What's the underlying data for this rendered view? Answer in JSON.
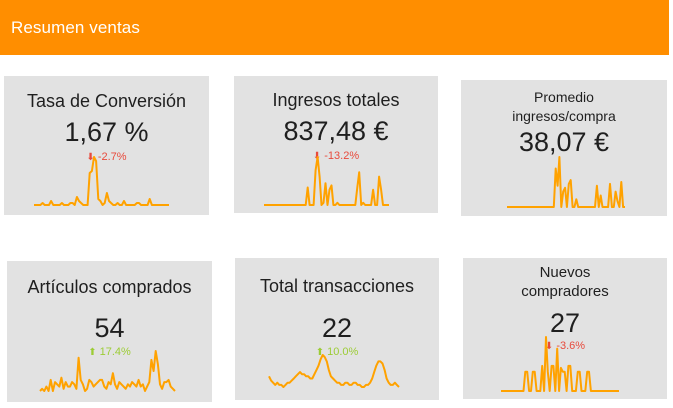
{
  "header": {
    "title": "Resumen ventas"
  },
  "colors": {
    "header_bg": "#ff8e00",
    "card_bg": "#e2e2e2",
    "sparkline": "#ffa200",
    "delta_down": "#e84a3c",
    "delta_up": "#9ccc35"
  },
  "cards": [
    {
      "title": "Tasa de Conversión",
      "value": "1,67 %",
      "delta": "-2.7%",
      "direction": "down",
      "sparkline": [
        0,
        0,
        0,
        0,
        1,
        0,
        0,
        0,
        2,
        0,
        0,
        0,
        0,
        1,
        0,
        0,
        0,
        1,
        1,
        0,
        4,
        2,
        1,
        0,
        0,
        0,
        16,
        17,
        24,
        22,
        3,
        2,
        0,
        1,
        6,
        2,
        1,
        0,
        0,
        1,
        0,
        0,
        2,
        0,
        0,
        0,
        0,
        0,
        1,
        1,
        0,
        0,
        0,
        0,
        3,
        0,
        0,
        0,
        0,
        0,
        0,
        0,
        0,
        0
      ]
    },
    {
      "title": "Ingresos totales",
      "value": "837,48 €",
      "delta": "-13.2%",
      "direction": "down",
      "sparkline": [
        0,
        0,
        0,
        0,
        0,
        0,
        0,
        0,
        0,
        0,
        0,
        0,
        0,
        0,
        0,
        0,
        0,
        0,
        0,
        0,
        0,
        0,
        8,
        0,
        0,
        0,
        16,
        22,
        13,
        0,
        1,
        10,
        0,
        7,
        9,
        0,
        0,
        1,
        0,
        0,
        0,
        0,
        0,
        0,
        0,
        0,
        0,
        8,
        15,
        0,
        1,
        0,
        0,
        0,
        0,
        7,
        0,
        0,
        13,
        7,
        0,
        0,
        0,
        0
      ]
    },
    {
      "title": "Promedio ingresos/compra",
      "value": "38,07 €",
      "delta": "",
      "direction": "none",
      "sparkline": [
        0,
        0,
        0,
        0,
        0,
        0,
        0,
        0,
        0,
        0,
        0,
        0,
        0,
        0,
        0,
        0,
        0,
        0,
        0,
        0,
        0,
        0,
        0,
        0,
        0,
        0,
        20,
        11,
        26,
        0,
        8,
        10,
        0,
        12,
        14,
        0,
        0,
        4,
        0,
        0,
        0,
        0,
        0,
        0,
        0,
        0,
        0,
        0,
        11,
        0,
        6,
        0,
        0,
        0,
        0,
        12,
        0,
        0,
        8,
        3,
        0,
        13,
        0,
        0
      ]
    },
    {
      "title": "Artículos comprados",
      "value": "54",
      "delta": "17.4%",
      "direction": "up",
      "sparkline": [
        0,
        1,
        0,
        2,
        0,
        5,
        0,
        4,
        3,
        2,
        6,
        1,
        4,
        2,
        2,
        4,
        3,
        1,
        15,
        5,
        3,
        0,
        1,
        5,
        4,
        2,
        3,
        4,
        5,
        5,
        2,
        1,
        4,
        3,
        8,
        3,
        1,
        4,
        3,
        2,
        1,
        3,
        2,
        4,
        3,
        2,
        5,
        2,
        3,
        0,
        2,
        4,
        14,
        9,
        18,
        12,
        3,
        1,
        4,
        4,
        5,
        2,
        1,
        0
      ]
    },
    {
      "title": "Total transacciones",
      "value": "22",
      "delta": "10.0%",
      "direction": "up",
      "sparkline": [
        5,
        3,
        2,
        1,
        2,
        1,
        1,
        0,
        1,
        2,
        2,
        3,
        4,
        5,
        6,
        7,
        6,
        6,
        5,
        5,
        4,
        4,
        6,
        8,
        10,
        13,
        15,
        14,
        12,
        8,
        5,
        4,
        3,
        2,
        2,
        1,
        1,
        2,
        2,
        1,
        1,
        2,
        2,
        1,
        1,
        0,
        0,
        1,
        1,
        2,
        4,
        7,
        10,
        12,
        12,
        11,
        8,
        4,
        2,
        1,
        1,
        2,
        1,
        0
      ]
    },
    {
      "title": "Nuevos compradores",
      "value": "27",
      "delta": "-3.6%",
      "direction": "down",
      "sparkline": [
        0,
        0,
        0,
        0,
        0,
        0,
        0,
        0,
        0,
        0,
        0,
        0,
        0,
        10,
        10,
        0,
        0,
        10,
        10,
        0,
        0,
        0,
        13,
        0,
        28,
        10,
        0,
        13,
        13,
        0,
        22,
        0,
        12,
        10,
        10,
        0,
        13,
        13,
        0,
        0,
        0,
        10,
        10,
        0,
        0,
        0,
        10,
        10,
        0,
        0,
        0,
        0,
        0,
        0,
        0,
        0,
        0,
        0,
        0,
        0,
        0,
        0,
        0,
        0
      ]
    }
  ]
}
